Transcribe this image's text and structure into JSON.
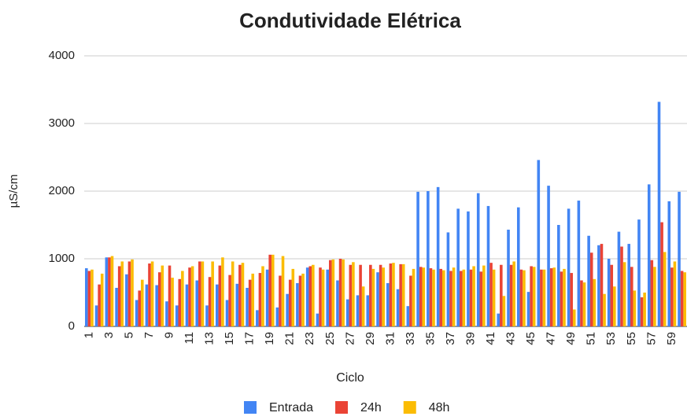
{
  "chart_data": {
    "type": "bar",
    "title": "Condutividade Elétrica",
    "x_label": "Ciclo",
    "y_label": "µS/cm",
    "categories": [
      "1",
      null,
      "3",
      null,
      "5",
      null,
      "7",
      null,
      "9",
      null,
      "11",
      null,
      "13",
      null,
      "15",
      null,
      "17",
      null,
      "19",
      null,
      "21",
      null,
      "23",
      null,
      "25",
      null,
      "27",
      null,
      "29",
      null,
      "31",
      null,
      "33",
      null,
      "35",
      null,
      "37",
      null,
      "39",
      null,
      "41",
      null,
      "43",
      null,
      "45",
      null,
      "47",
      null,
      "49",
      null,
      "51",
      null,
      "53",
      null,
      "55",
      null,
      "57",
      null,
      "59",
      null
    ],
    "series": [
      {
        "name": "Entrada",
        "color": "#4285f4",
        "values": [
          860,
          310,
          1020,
          570,
          770,
          390,
          620,
          610,
          370,
          310,
          620,
          680,
          310,
          620,
          390,
          630,
          570,
          240,
          840,
          280,
          480,
          640,
          870,
          190,
          840,
          680,
          400,
          460,
          460,
          800,
          640,
          550,
          300,
          1990,
          2000,
          2060,
          1390,
          1740,
          1700,
          1970,
          1780,
          190,
          1430,
          1760,
          510,
          2460,
          2080,
          1500,
          1740,
          1860,
          1340,
          1200,
          1000,
          1400,
          1220,
          1580,
          2100,
          3320,
          1850,
          1990
        ]
      },
      {
        "name": "24h",
        "color": "#ea4335",
        "values": [
          820,
          620,
          1020,
          890,
          960,
          530,
          930,
          800,
          900,
          700,
          870,
          960,
          730,
          900,
          760,
          910,
          690,
          790,
          1060,
          750,
          690,
          750,
          890,
          870,
          980,
          1000,
          910,
          910,
          910,
          910,
          930,
          920,
          750,
          880,
          860,
          850,
          820,
          820,
          840,
          810,
          940,
          910,
          910,
          840,
          890,
          840,
          860,
          810,
          790,
          680,
          1090,
          1220,
          910,
          1180,
          880,
          430,
          980,
          1540,
          870,
          820
        ]
      },
      {
        "name": "48h",
        "color": "#fbbc04",
        "values": [
          840,
          780,
          1040,
          960,
          990,
          690,
          960,
          900,
          720,
          820,
          890,
          960,
          960,
          1020,
          960,
          940,
          780,
          890,
          1060,
          1040,
          850,
          780,
          910,
          840,
          990,
          990,
          950,
          590,
          850,
          870,
          940,
          920,
          850,
          870,
          840,
          830,
          870,
          840,
          890,
          900,
          840,
          450,
          960,
          830,
          880,
          840,
          870,
          850,
          250,
          650,
          700,
          480,
          590,
          950,
          530,
          500,
          880,
          1100,
          960,
          800
        ]
      }
    ],
    "ylim": [
      0,
      4000
    ],
    "yticks": [
      0,
      1000,
      2000,
      3000,
      4000
    ],
    "grid": true
  }
}
